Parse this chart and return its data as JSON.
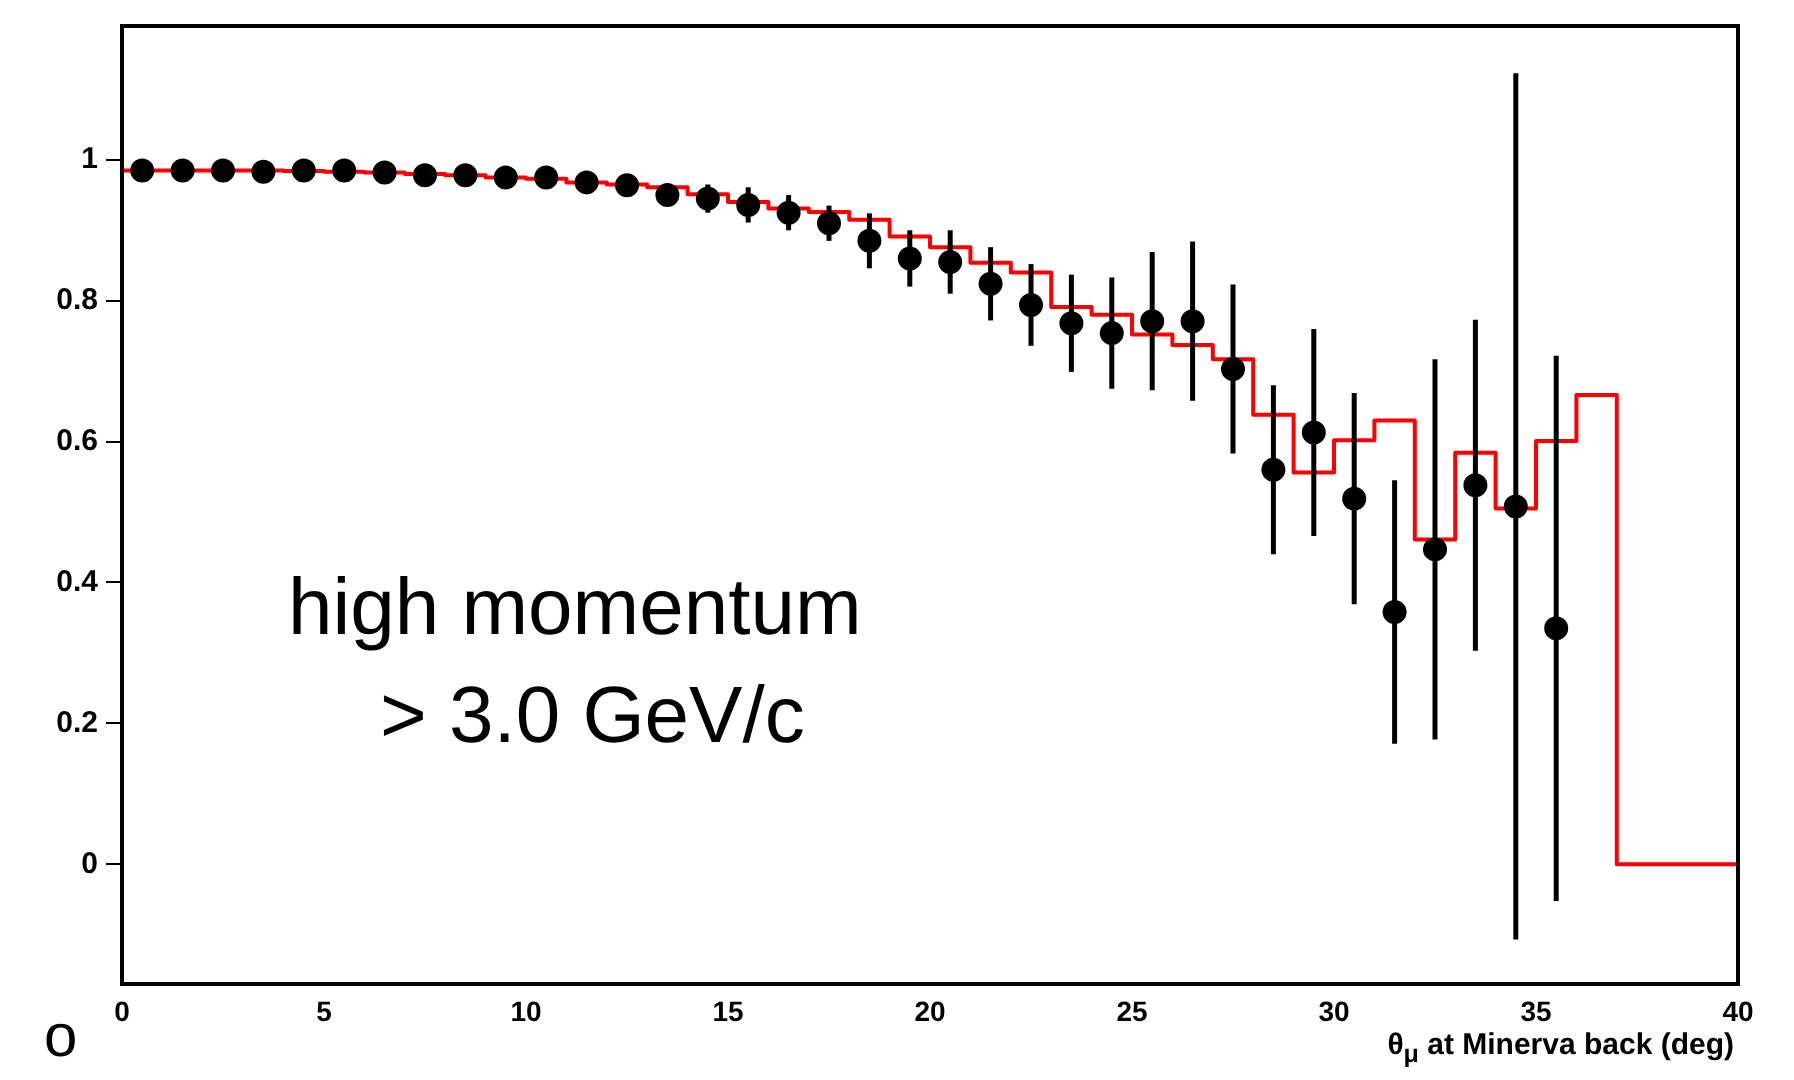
{
  "chart_data": {
    "type": "histogram",
    "xlabel": "θ$_{μ}$ at Minerva back (deg)",
    "annotations": [
      "high momentum",
      "> 3.0 GeV/c",
      "o"
    ],
    "xlim": [
      0,
      40
    ],
    "xticks": [
      0,
      5,
      10,
      15,
      20,
      25,
      30,
      35,
      40
    ],
    "ylim": [
      -0.17,
      1.19
    ],
    "yticks": [
      0,
      0.2,
      0.4,
      0.6,
      0.8,
      1
    ],
    "grid": false,
    "legend": false,
    "series": [
      {
        "type": "histogram",
        "color": "#ff0000",
        "bins": [
          0,
          1,
          2,
          3,
          4,
          5,
          6,
          7,
          8,
          9,
          10,
          11,
          12,
          13,
          14,
          15,
          16,
          17,
          18,
          19,
          20,
          21,
          22,
          23,
          24,
          25,
          26,
          27,
          28,
          29,
          30,
          31,
          32,
          33,
          34,
          35,
          36,
          37,
          38,
          39,
          40
        ],
        "values": [
          0.985,
          0.985,
          0.985,
          0.985,
          0.984,
          0.983,
          0.982,
          0.98,
          0.978,
          0.975,
          0.973,
          0.968,
          0.965,
          0.961,
          0.951,
          0.94,
          0.931,
          0.926,
          0.915,
          0.891,
          0.876,
          0.854,
          0.84,
          0.791,
          0.78,
          0.752,
          0.737,
          0.717,
          0.638,
          0.556,
          0.602,
          0.63,
          0.461,
          0.584,
          0.505,
          0.601,
          0.666,
          0,
          0,
          0
        ]
      },
      {
        "type": "scatter",
        "color": "#000000",
        "marker": "circle",
        "x": [
          0.5,
          1.5,
          2.5,
          3.5,
          4.5,
          5.5,
          6.5,
          7.5,
          8.5,
          9.5,
          10.5,
          11.5,
          12.5,
          13.5,
          14.5,
          15.5,
          16.5,
          17.5,
          18.5,
          19.5,
          20.5,
          21.5,
          22.5,
          23.5,
          24.5,
          25.5,
          26.5,
          27.5,
          28.5,
          29.5,
          30.5,
          31.5,
          32.5,
          33.5,
          34.5,
          35.5
        ],
        "values": [
          0.985,
          0.985,
          0.985,
          0.983,
          0.985,
          0.985,
          0.982,
          0.978,
          0.978,
          0.975,
          0.975,
          0.968,
          0.964,
          0.95,
          0.945,
          0.936,
          0.925,
          0.91,
          0.885,
          0.86,
          0.855,
          0.824,
          0.794,
          0.768,
          0.754,
          0.771,
          0.771,
          0.703,
          0.56,
          0.613,
          0.519,
          0.358,
          0.447,
          0.538,
          0.508,
          0.335
        ],
        "errors": [
          0.01,
          0.01,
          0.01,
          0.01,
          0.01,
          0.01,
          0.01,
          0.01,
          0.01,
          0.01,
          0.01,
          0.01,
          0.01,
          0.015,
          0.02,
          0.025,
          0.025,
          0.025,
          0.039,
          0.04,
          0.045,
          0.052,
          0.058,
          0.069,
          0.079,
          0.098,
          0.113,
          0.12,
          0.12,
          0.147,
          0.15,
          0.187,
          0.27,
          0.235,
          0.615,
          0.387
        ]
      }
    ]
  }
}
